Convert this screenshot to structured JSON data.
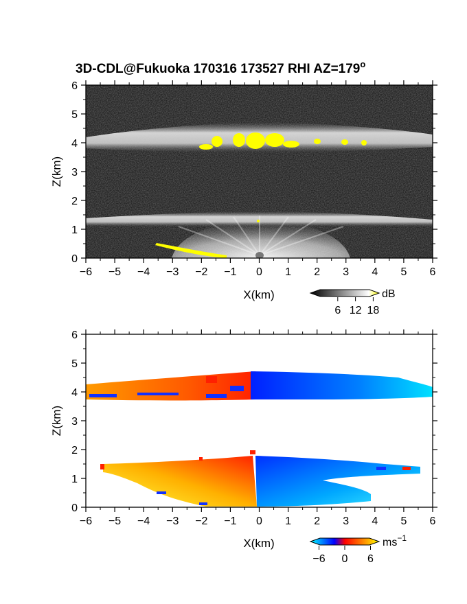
{
  "title": "3D-CDL@Fukuoka 170316 173527 RHI AZ=179",
  "title_suffix": "o",
  "chart_data": [
    {
      "type": "heatmap",
      "name": "backscatter",
      "xlabel": "X(km)",
      "ylabel": "Z(km)",
      "xlim": [
        -6,
        6
      ],
      "ylim": [
        0,
        6
      ],
      "xticks": [
        -6,
        -5,
        -4,
        -3,
        -2,
        -1,
        0,
        1,
        2,
        3,
        4,
        5,
        6
      ],
      "yticks": [
        0,
        1,
        2,
        3,
        4,
        5,
        6
      ],
      "colorbar": {
        "unit": "dB",
        "ticks": [
          6,
          12,
          18
        ],
        "range": [
          0,
          20
        ],
        "colors": [
          "#000000",
          "#ffffff",
          "#ffff00"
        ]
      },
      "layers": [
        {
          "feature": "upper cloud layer",
          "x": [
            -6,
            6
          ],
          "z_center": 4.1,
          "z_halfwidth": 0.3
        },
        {
          "feature": "lower cloud layer",
          "x": [
            -6,
            6
          ],
          "z_center": 1.3,
          "z_halfwidth": 0.15
        },
        {
          "feature": "near-radar signal fan",
          "x": [
            -3,
            3
          ],
          "z": [
            0,
            1.3
          ]
        },
        {
          "feature": "yellow >18 dB patches",
          "x": [
            -2,
            3.6
          ],
          "z": [
            3.8,
            4.5
          ]
        },
        {
          "feature": "ground clutter (yellow)",
          "x": [
            -3.5,
            -1
          ],
          "z": [
            0,
            0.5
          ]
        }
      ]
    },
    {
      "type": "heatmap",
      "name": "doppler-velocity",
      "xlabel": "X(km)",
      "ylabel": "Z(km)",
      "xlim": [
        -6,
        6
      ],
      "ylim": [
        0,
        6
      ],
      "xticks": [
        -6,
        -5,
        -4,
        -3,
        -2,
        -1,
        0,
        1,
        2,
        3,
        4,
        5,
        6
      ],
      "yticks": [
        0,
        1,
        2,
        3,
        4,
        5,
        6
      ],
      "colorbar": {
        "unit": "ms",
        "unit_superscript": "−1",
        "ticks": [
          "−6",
          "0",
          "6"
        ],
        "range": [
          -8,
          8
        ],
        "colors": [
          "#00ffff",
          "#0000ff",
          "#ff0000",
          "#ffff00"
        ]
      },
      "layers": [
        {
          "feature": "upper layer, approaching (red/orange)",
          "x": [
            -6,
            -0.3
          ],
          "z": [
            3.6,
            4.7
          ],
          "velocity": 3
        },
        {
          "feature": "upper layer, receding (blue)",
          "x": [
            -0.3,
            6
          ],
          "z": [
            3.8,
            4.7
          ],
          "velocity": -4
        },
        {
          "feature": "lower layer, approaching (red to yellow)",
          "x": [
            -5.5,
            0
          ],
          "z": [
            0,
            1.5
          ],
          "velocity": 4
        },
        {
          "feature": "lower layer, receding (blue to cyan)",
          "x": [
            0,
            5.3
          ],
          "z": [
            0,
            1.6
          ],
          "velocity": -3
        }
      ]
    }
  ]
}
